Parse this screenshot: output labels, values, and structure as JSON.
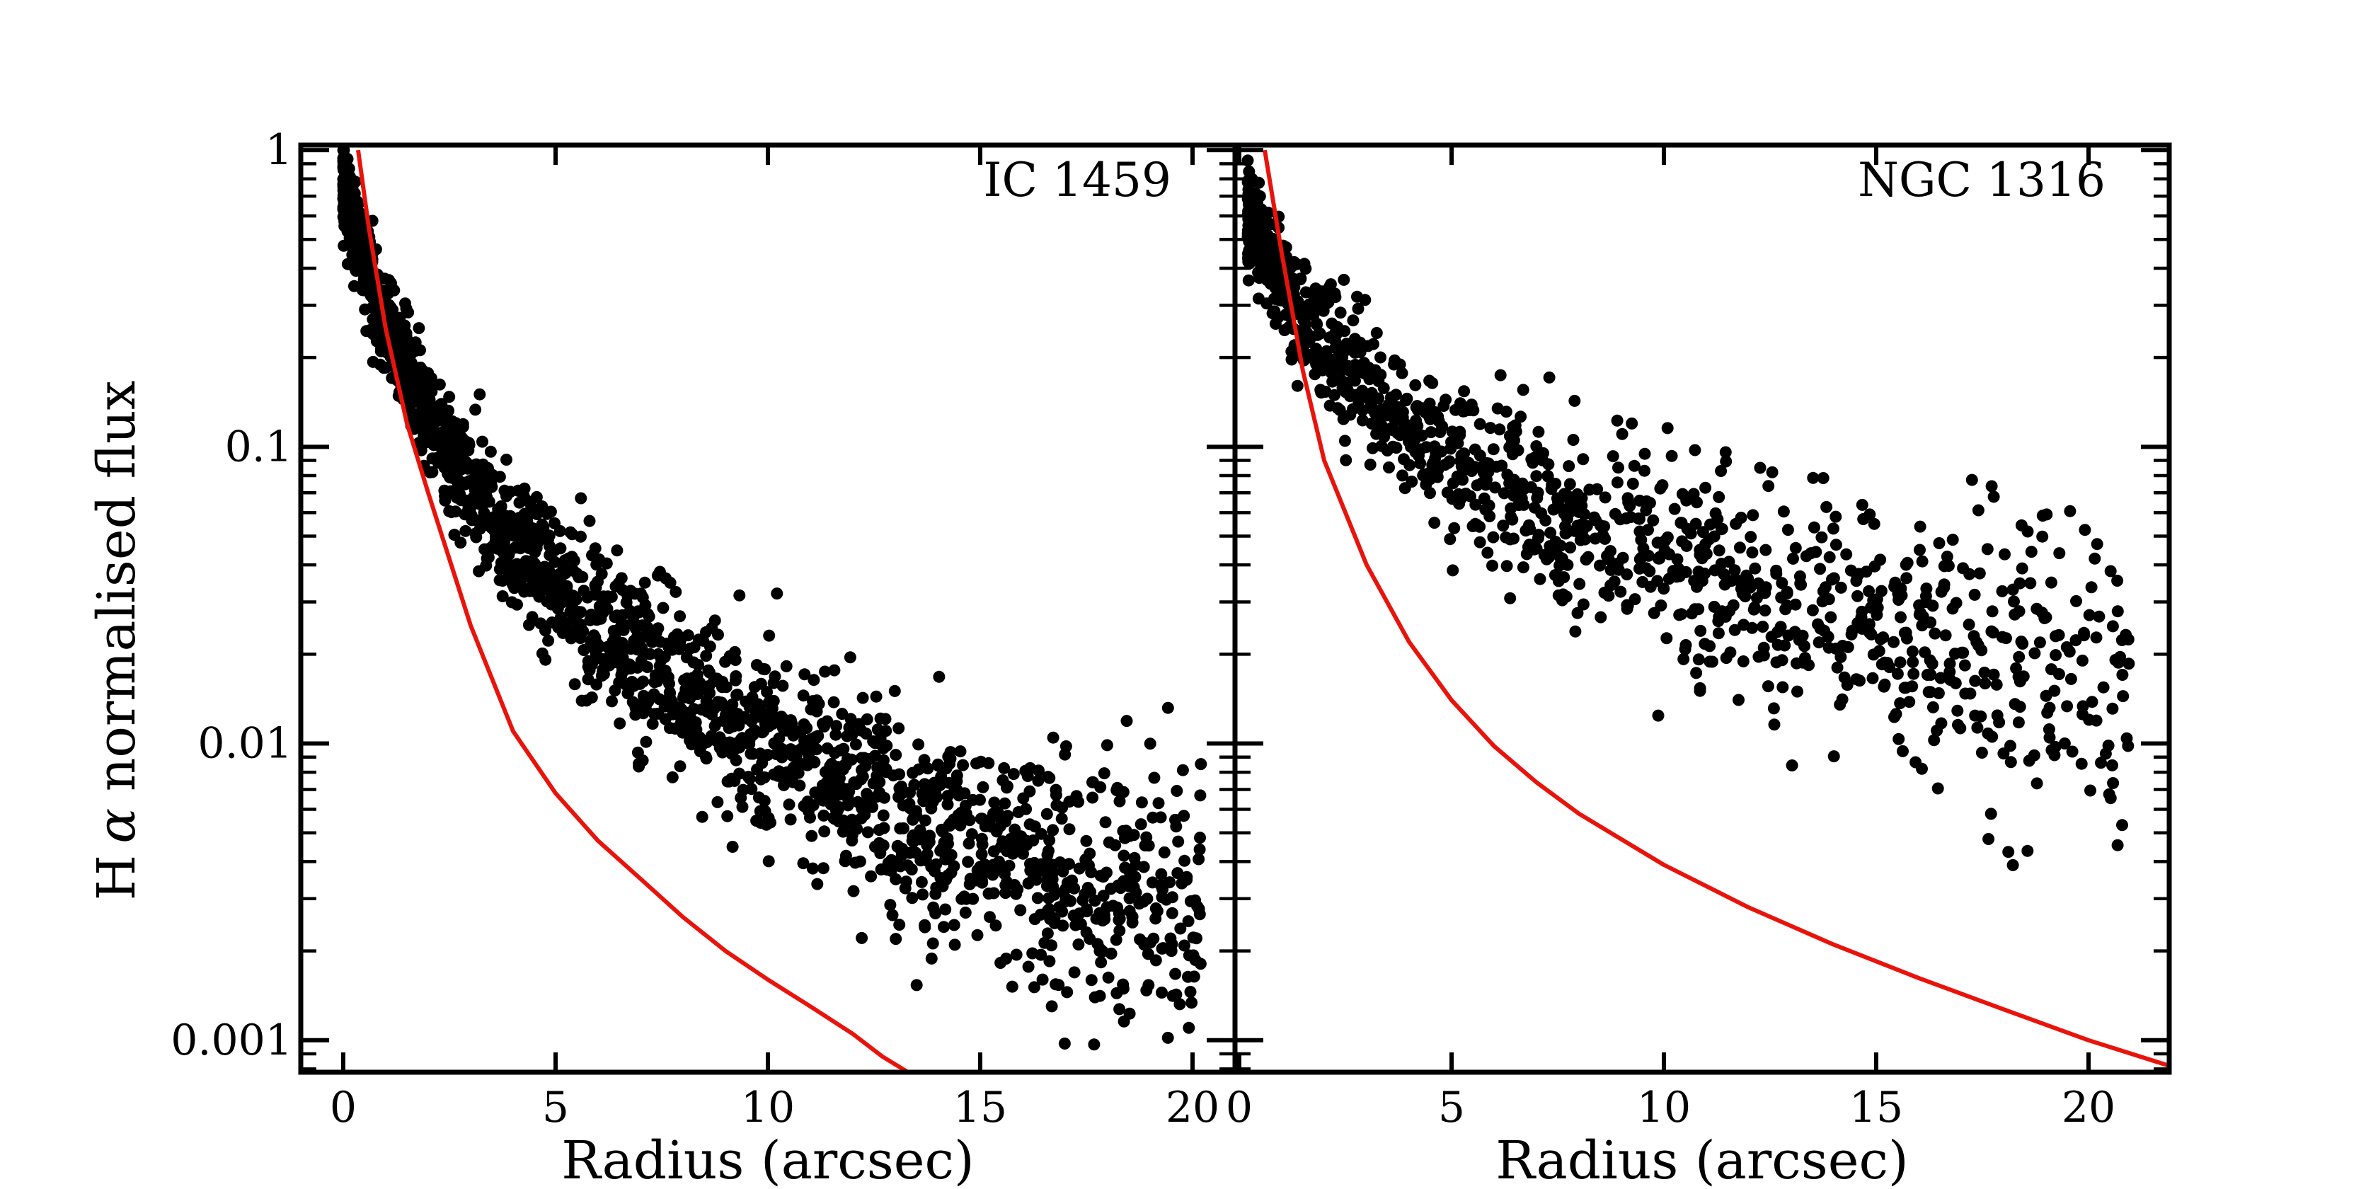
{
  "figure": {
    "ylabel_prefix": "H",
    "ylabel_alpha": "α",
    "ylabel_rest": " normalised flux"
  },
  "colors": {
    "points": "#000000",
    "model_curve": "#e8140c",
    "axes": "#000000"
  },
  "chart_data": [
    {
      "type": "scatter",
      "title": "IC 1459",
      "xlabel": "Radius (arcsec)",
      "ylabel": "H α normalised flux",
      "xlim": [
        -1.0,
        21.0
      ],
      "ylim": [
        0.00078,
        1.04
      ],
      "yscale": "log",
      "grid": false,
      "x_ticks": [
        0,
        5,
        10,
        15,
        20
      ],
      "x_tick_labels": [
        "0",
        "5",
        "10",
        "15",
        "20"
      ],
      "y_ticks": [
        1,
        0.1,
        0.01,
        0.001
      ],
      "y_tick_labels": [
        "1",
        "0.1",
        "0.01",
        "0.001"
      ],
      "scatter_model": {
        "r_min": 0.0,
        "r_max": 20.2,
        "n_points": 2100,
        "inner_slope": 1.75,
        "outer_slope": 0.5,
        "spread_dex": 0.18,
        "upper_bias_dex": 0.12
      },
      "model_curve": {
        "label_printed": false,
        "r_start": 0.35,
        "points": [
          [
            0.35,
            1.0
          ],
          [
            0.6,
            0.55
          ],
          [
            1.0,
            0.25
          ],
          [
            1.5,
            0.12
          ],
          [
            2.0,
            0.07
          ],
          [
            3.0,
            0.025
          ],
          [
            4.0,
            0.011
          ],
          [
            5.0,
            0.0068
          ],
          [
            6.0,
            0.0047
          ],
          [
            7.0,
            0.0035
          ],
          [
            8.0,
            0.0026
          ],
          [
            9.0,
            0.002
          ],
          [
            10.0,
            0.0016
          ],
          [
            11.0,
            0.0013
          ],
          [
            12.0,
            0.00105
          ],
          [
            12.7,
            0.00088
          ],
          [
            13.3,
            0.00078
          ]
        ]
      }
    },
    {
      "type": "scatter",
      "title": "NGC 1316",
      "xlabel": "Radius (arcsec)",
      "ylabel": "",
      "xlim": [
        -0.1,
        21.9
      ],
      "ylim": [
        0.00078,
        1.04
      ],
      "yscale": "log",
      "grid": false,
      "x_ticks": [
        0,
        5,
        10,
        15,
        20
      ],
      "x_tick_labels": [
        "0",
        "5",
        "10",
        "15",
        "20"
      ],
      "y_ticks": [
        1,
        0.1,
        0.01,
        0.001
      ],
      "y_tick_labels": [],
      "scatter_model": {
        "r_min": 0.2,
        "r_max": 21.0,
        "n_points": 1250,
        "inner_slope": 1.15,
        "outer_slope": 0.35,
        "spread_dex": 0.2,
        "upper_bias_dex": 0.2
      },
      "model_curve": {
        "label_printed": false,
        "r_start": 0.6,
        "points": [
          [
            0.6,
            1.0
          ],
          [
            1.0,
            0.45
          ],
          [
            1.5,
            0.18
          ],
          [
            2.0,
            0.09
          ],
          [
            3.0,
            0.04
          ],
          [
            4.0,
            0.022
          ],
          [
            5.0,
            0.014
          ],
          [
            6.0,
            0.0098
          ],
          [
            7.0,
            0.0074
          ],
          [
            8.0,
            0.0058
          ],
          [
            10.0,
            0.0039
          ],
          [
            12.0,
            0.0028
          ],
          [
            14.0,
            0.0021
          ],
          [
            16.0,
            0.00162
          ],
          [
            18.0,
            0.00127
          ],
          [
            20.0,
            0.001
          ],
          [
            21.9,
            0.00082
          ]
        ]
      }
    }
  ]
}
